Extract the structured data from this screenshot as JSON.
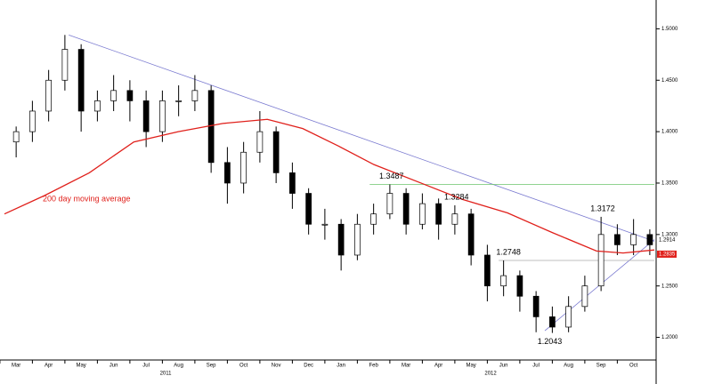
{
  "chart_data": {
    "type": "candlestick",
    "categories": [
      "Mar",
      "Apr",
      "May",
      "Jun",
      "Jul",
      "Aug",
      "Sep",
      "Oct",
      "Nov",
      "Dec",
      "Jan",
      "Feb",
      "Mar",
      "Apr",
      "May",
      "Jun",
      "Jul",
      "Aug",
      "Sep",
      "Oct"
    ],
    "years": [
      {
        "label": "2011",
        "x": 4.6
      },
      {
        "label": "2012",
        "x": 14.6
      }
    ],
    "xlim": [
      -0.36,
      19.64
    ],
    "ylim": [
      1.178,
      1.528
    ],
    "yticks": [
      {
        "value": 1.2,
        "label": "1.2000"
      },
      {
        "value": 1.25,
        "label": "1.2500"
      },
      {
        "value": 1.3,
        "label": "1.3000"
      },
      {
        "value": 1.35,
        "label": "1.3500"
      },
      {
        "value": 1.4,
        "label": "1.4000"
      },
      {
        "value": 1.45,
        "label": "1.4500"
      },
      {
        "value": 1.5,
        "label": "1.5000"
      }
    ],
    "x": [
      0,
      0.5,
      1,
      1.5,
      2,
      2.5,
      3,
      3.5,
      4,
      4.5,
      5,
      5.5,
      6,
      6.5,
      7,
      7.5,
      8,
      8.5,
      9,
      9.5,
      10,
      10.5,
      11,
      11.5,
      12,
      12.5,
      13,
      13.5,
      14,
      14.5,
      15,
      15.5,
      16,
      16.5,
      17,
      17.5,
      18,
      18.5,
      19,
      19.5
    ],
    "open": [
      1.39,
      1.4,
      1.42,
      1.45,
      1.48,
      1.42,
      1.43,
      1.44,
      1.43,
      1.4,
      1.43,
      1.43,
      1.44,
      1.37,
      1.35,
      1.38,
      1.4,
      1.36,
      1.34,
      1.31,
      1.31,
      1.28,
      1.31,
      1.32,
      1.34,
      1.31,
      1.33,
      1.31,
      1.32,
      1.28,
      1.25,
      1.26,
      1.24,
      1.22,
      1.21,
      1.23,
      1.25,
      1.3,
      1.29,
      1.3
    ],
    "high": [
      1.405,
      1.43,
      1.46,
      1.494,
      1.485,
      1.44,
      1.455,
      1.45,
      1.44,
      1.44,
      1.445,
      1.455,
      1.445,
      1.385,
      1.39,
      1.42,
      1.405,
      1.37,
      1.345,
      1.325,
      1.315,
      1.32,
      1.33,
      1.3487,
      1.345,
      1.34,
      1.335,
      1.3284,
      1.325,
      1.29,
      1.2748,
      1.265,
      1.245,
      1.23,
      1.24,
      1.26,
      1.3172,
      1.31,
      1.315,
      1.305
    ],
    "low": [
      1.375,
      1.39,
      1.41,
      1.44,
      1.4,
      1.41,
      1.42,
      1.41,
      1.385,
      1.39,
      1.415,
      1.42,
      1.36,
      1.33,
      1.34,
      1.37,
      1.35,
      1.325,
      1.3,
      1.295,
      1.265,
      1.275,
      1.3,
      1.315,
      1.3,
      1.305,
      1.295,
      1.3,
      1.27,
      1.235,
      1.24,
      1.225,
      1.205,
      1.2043,
      1.205,
      1.225,
      1.245,
      1.28,
      1.28,
      1.28
    ],
    "close": [
      1.4,
      1.42,
      1.45,
      1.48,
      1.42,
      1.43,
      1.44,
      1.43,
      1.4,
      1.43,
      1.43,
      1.44,
      1.37,
      1.35,
      1.38,
      1.4,
      1.36,
      1.34,
      1.31,
      1.31,
      1.28,
      1.31,
      1.32,
      1.34,
      1.31,
      1.33,
      1.31,
      1.32,
      1.28,
      1.25,
      1.26,
      1.24,
      1.22,
      1.21,
      1.23,
      1.25,
      1.3,
      1.29,
      1.3,
      1.29
    ],
    "moving_average": {
      "name": "200 day moving average",
      "color": "#e0201b",
      "x": [
        -0.36,
        0.88,
        2.25,
        3.62,
        4.99,
        6.36,
        7.73,
        8.82,
        9.92,
        11.01,
        12.38,
        13.75,
        15.12,
        16.49,
        17.86,
        18.68,
        19.64
      ],
      "values": [
        1.32,
        1.338,
        1.36,
        1.39,
        1.4,
        1.408,
        1.412,
        1.403,
        1.386,
        1.368,
        1.351,
        1.334,
        1.321,
        1.302,
        1.284,
        1.282,
        1.285
      ]
    },
    "lines": [
      {
        "color": "#7a7ad0",
        "x": [
          1.62,
          19.64
        ],
        "values": [
          1.494,
          1.2935
        ]
      },
      {
        "color": "#7a7ad0",
        "x": [
          16.27,
          19.64
        ],
        "values": [
          1.2065,
          1.295
        ]
      },
      {
        "color": "#6cc46c",
        "x": [
          10.88,
          19.64
        ],
        "values": [
          1.3487,
          1.3487
        ]
      },
      {
        "color": "#aaaaaa",
        "x": [
          14.85,
          19.64
        ],
        "values": [
          1.2748,
          1.2748
        ]
      }
    ],
    "annotations": [
      {
        "label": "1.3487",
        "value": 1.3487,
        "x": 11.55
      },
      {
        "label": "1.3284",
        "value": 1.3284,
        "x": 13.55
      },
      {
        "label": "1.3172",
        "value": 1.3172,
        "x": 18.05
      },
      {
        "label": "1.2748",
        "value": 1.2748,
        "x": 15.15
      },
      {
        "label": "1.2043",
        "value": 1.2043,
        "x": 16.42
      }
    ],
    "price_tags": [
      {
        "label": "1.2914",
        "value": 1.2914,
        "color": "#ffffff",
        "text_color": "#000000"
      },
      {
        "label": "1.2835",
        "value": 1.2835,
        "color": "#e0201b",
        "text_color": "#ffffff"
      }
    ]
  }
}
